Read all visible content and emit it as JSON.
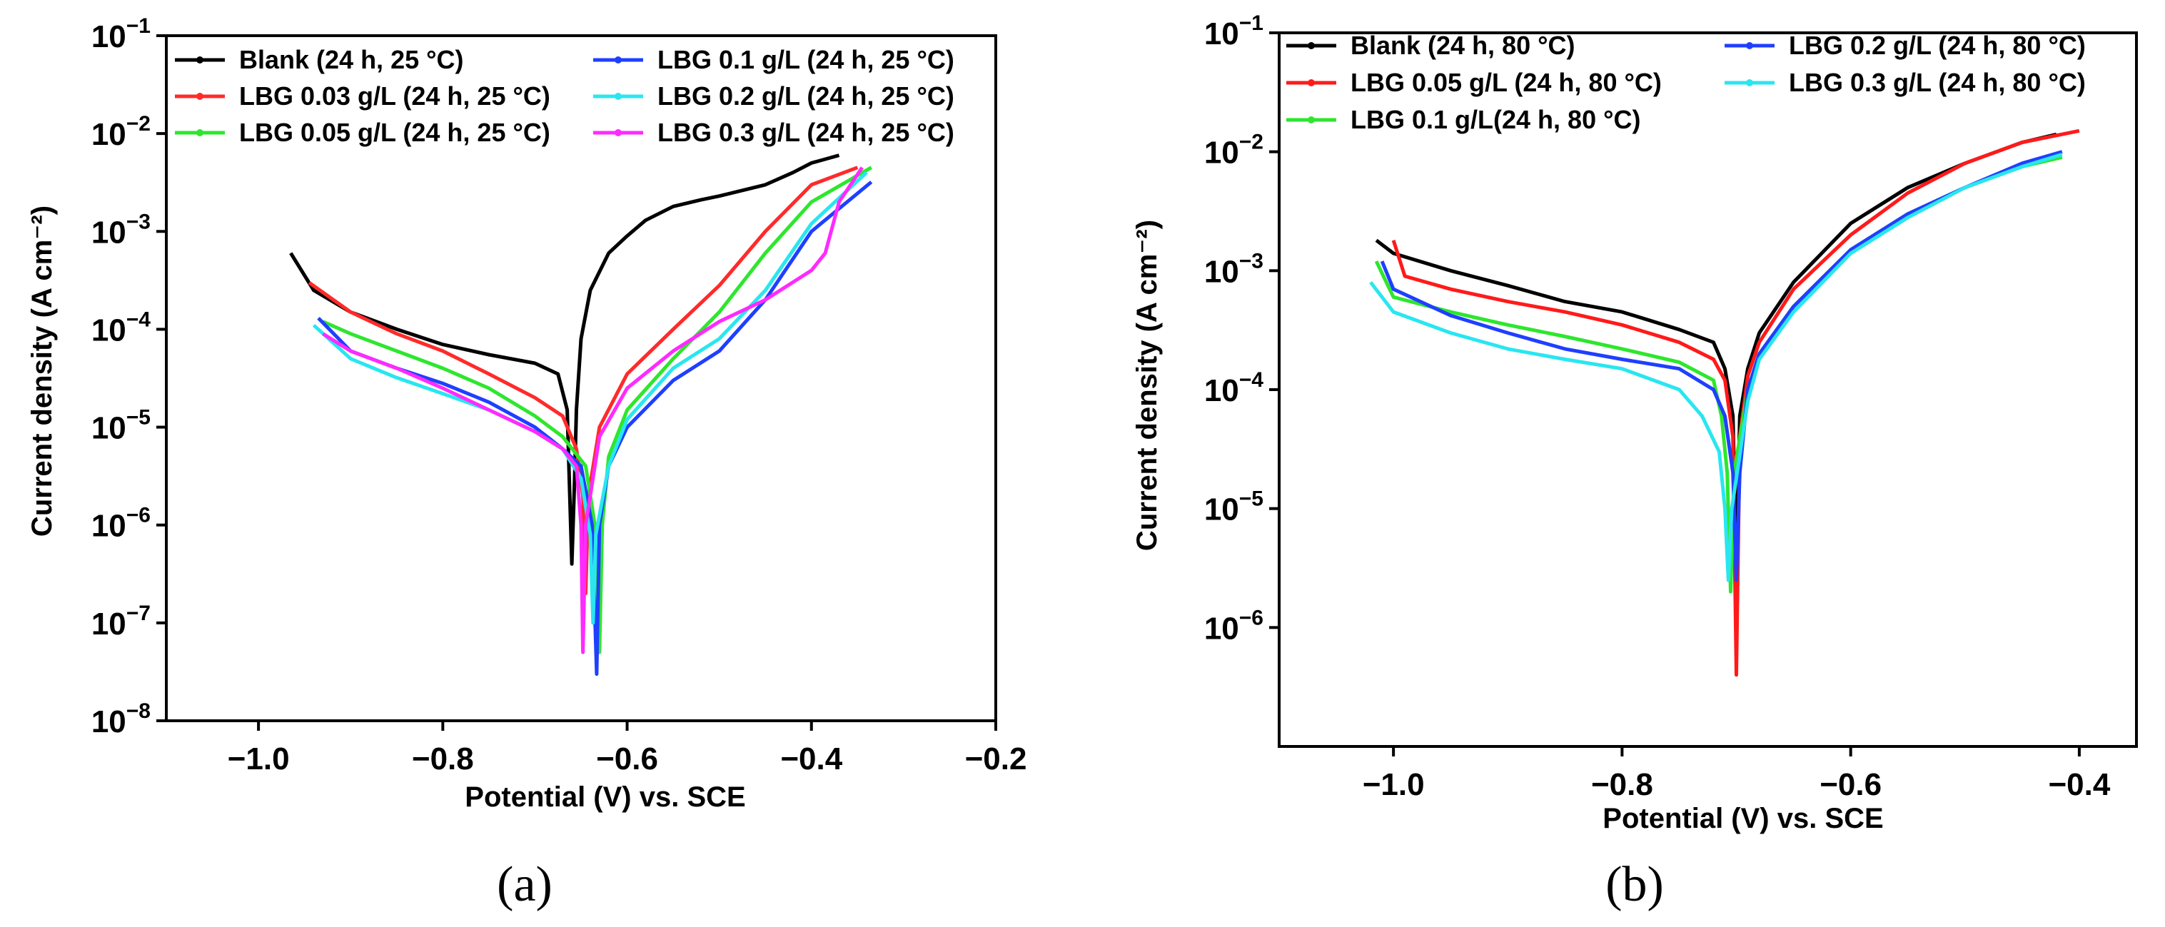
{
  "figure": {
    "panel_a_label": "(a)",
    "panel_b_label": "(b)"
  },
  "chart_data": [
    {
      "type": "line",
      "panel": "(a)",
      "xlabel": "Potential (V) vs. SCE",
      "ylabel": "Current density (A cm⁻²)",
      "yscale": "log",
      "xlim": [
        -1.1,
        -0.2
      ],
      "ylim": [
        1e-08,
        0.1
      ],
      "xticks": [
        -1.0,
        -0.8,
        -0.6,
        -0.4,
        -0.2
      ],
      "xtick_labels": [
        "−1.0",
        "−0.8",
        "−0.6",
        "−0.4",
        "−0.2"
      ],
      "yticks": [
        -8,
        -7,
        -6,
        -5,
        -4,
        -3,
        -2,
        -1
      ],
      "legend_position": "top",
      "series": [
        {
          "name": "Blank  (24 h, 25 °C)",
          "color": "#000000",
          "x": [
            -0.965,
            -0.94,
            -0.9,
            -0.85,
            -0.8,
            -0.75,
            -0.7,
            -0.675,
            -0.665,
            -0.66,
            -0.657,
            -0.655,
            -0.65,
            -0.64,
            -0.62,
            -0.6,
            -0.58,
            -0.55,
            -0.52,
            -0.5,
            -0.45,
            -0.42,
            -0.4,
            -0.37
          ],
          "y": [
            0.0006,
            0.00025,
            0.00015,
            0.0001,
            7e-05,
            5.5e-05,
            4.5e-05,
            3.5e-05,
            1.5e-05,
            4e-07,
            3e-06,
            1.5e-05,
            8e-05,
            0.00025,
            0.0006,
            0.0009,
            0.0013,
            0.0018,
            0.0021,
            0.0023,
            0.003,
            0.004,
            0.005,
            0.006
          ]
        },
        {
          "name": "LBG 0.03 g/L (24 h, 25 °C)",
          "color": "#ff2a2a",
          "x": [
            -0.945,
            -0.9,
            -0.85,
            -0.8,
            -0.75,
            -0.7,
            -0.67,
            -0.655,
            -0.648,
            -0.645,
            -0.642,
            -0.63,
            -0.6,
            -0.55,
            -0.5,
            -0.45,
            -0.4,
            -0.35
          ],
          "y": [
            0.0003,
            0.00015,
            9e-05,
            6e-05,
            3.5e-05,
            2e-05,
            1.3e-05,
            6e-06,
            2e-06,
            2e-07,
            2e-06,
            1e-05,
            3.5e-05,
            0.0001,
            0.00028,
            0.001,
            0.003,
            0.0045
          ]
        },
        {
          "name": "LBG 0.05 g/L (24 h, 25 °C)",
          "color": "#2ee62e",
          "x": [
            -0.93,
            -0.9,
            -0.85,
            -0.8,
            -0.75,
            -0.7,
            -0.67,
            -0.645,
            -0.635,
            -0.63,
            -0.627,
            -0.62,
            -0.6,
            -0.55,
            -0.5,
            -0.45,
            -0.4,
            -0.335
          ],
          "y": [
            0.00012,
            9e-05,
            6e-05,
            4e-05,
            2.5e-05,
            1.3e-05,
            8e-06,
            4e-06,
            1e-06,
            5e-08,
            1e-06,
            5e-06,
            1.5e-05,
            5e-05,
            0.00015,
            0.0006,
            0.002,
            0.0045
          ]
        },
        {
          "name": "LBG 0.1 g/L (24 h, 25 °C)",
          "color": "#1f3fff",
          "x": [
            -0.935,
            -0.9,
            -0.85,
            -0.8,
            -0.75,
            -0.7,
            -0.67,
            -0.65,
            -0.638,
            -0.633,
            -0.63,
            -0.62,
            -0.6,
            -0.55,
            -0.5,
            -0.45,
            -0.4,
            -0.335
          ],
          "y": [
            0.00013,
            6e-05,
            4e-05,
            2.8e-05,
            1.8e-05,
            1e-05,
            6e-06,
            4e-06,
            1e-06,
            3e-08,
            1e-06,
            4e-06,
            1e-05,
            3e-05,
            6e-05,
            0.0002,
            0.001,
            0.0032
          ]
        },
        {
          "name": "LBG 0.2 g/L (24 h, 25 °C)",
          "color": "#29e6f0",
          "x": [
            -0.94,
            -0.9,
            -0.85,
            -0.8,
            -0.75,
            -0.7,
            -0.67,
            -0.65,
            -0.64,
            -0.637,
            -0.634,
            -0.62,
            -0.6,
            -0.55,
            -0.5,
            -0.45,
            -0.4,
            -0.34
          ],
          "y": [
            0.00011,
            5e-05,
            3.2e-05,
            2.2e-05,
            1.5e-05,
            9e-06,
            6e-06,
            3e-06,
            8e-07,
            1e-07,
            8e-07,
            4e-06,
            1.2e-05,
            4e-05,
            8e-05,
            0.00025,
            0.0012,
            0.004
          ]
        },
        {
          "name": "LBG 0.3 g/L (24 h, 25 °C)",
          "color": "#ff2aff",
          "x": [
            -0.93,
            -0.9,
            -0.85,
            -0.8,
            -0.75,
            -0.7,
            -0.67,
            -0.655,
            -0.65,
            -0.648,
            -0.645,
            -0.63,
            -0.6,
            -0.55,
            -0.5,
            -0.45,
            -0.4,
            -0.385,
            -0.37,
            -0.345
          ],
          "y": [
            9e-05,
            6e-05,
            4e-05,
            2.5e-05,
            1.5e-05,
            9e-06,
            6e-06,
            4e-06,
            1e-06,
            5e-08,
            1e-06,
            8e-06,
            2.5e-05,
            6e-05,
            0.00012,
            0.0002,
            0.0004,
            0.0006,
            0.002,
            0.0045
          ]
        }
      ],
      "legend": [
        "Blank  (24 h, 25 °C)",
        "LBG 0.03 g/L (24 h, 25 °C)",
        "LBG 0.05 g/L (24 h, 25 °C)",
        "LBG 0.1 g/L (24 h, 25 °C)",
        "LBG 0.2 g/L (24 h, 25 °C)",
        "LBG 0.3 g/L (24 h, 25 °C)"
      ]
    },
    {
      "type": "line",
      "panel": "(b)",
      "xlabel": "Potential (V) vs. SCE",
      "ylabel": "Current density (A cm⁻²)",
      "yscale": "log",
      "xlim": [
        -1.1,
        -0.35
      ],
      "ylim": [
        1e-07,
        0.1
      ],
      "xticks": [
        -1.0,
        -0.8,
        -0.6,
        -0.4
      ],
      "xtick_labels": [
        "−1.0",
        "−0.8",
        "−0.6",
        "−0.4"
      ],
      "yticks": [
        -6,
        -5,
        -4,
        -3,
        -2,
        -1
      ],
      "legend_position": "top",
      "series": [
        {
          "name": "Blank (24 h, 80 °C)",
          "color": "#000000",
          "x": [
            -1.015,
            -1.0,
            -0.95,
            -0.9,
            -0.85,
            -0.8,
            -0.75,
            -0.72,
            -0.71,
            -0.703,
            -0.7,
            -0.697,
            -0.69,
            -0.68,
            -0.65,
            -0.6,
            -0.55,
            -0.5,
            -0.45,
            -0.42
          ],
          "y": [
            0.0018,
            0.0014,
            0.001,
            0.00075,
            0.00055,
            0.00045,
            0.00032,
            0.00025,
            0.00015,
            6e-05,
            3e-06,
            6e-05,
            0.00015,
            0.0003,
            0.0008,
            0.0025,
            0.005,
            0.008,
            0.012,
            0.014
          ]
        },
        {
          "name": "LBG 0.05 g/L (24 h, 80 °C)",
          "color": "#ff1a1a",
          "x": [
            -1.0,
            -0.99,
            -0.95,
            -0.9,
            -0.85,
            -0.8,
            -0.75,
            -0.72,
            -0.71,
            -0.703,
            -0.7,
            -0.697,
            -0.69,
            -0.68,
            -0.65,
            -0.6,
            -0.55,
            -0.5,
            -0.45,
            -0.4
          ],
          "y": [
            0.0018,
            0.0009,
            0.0007,
            0.00055,
            0.00045,
            0.00035,
            0.00025,
            0.00018,
            0.00012,
            4e-05,
            4e-07,
            4e-05,
            0.00013,
            0.00025,
            0.0007,
            0.002,
            0.0045,
            0.008,
            0.012,
            0.015
          ]
        },
        {
          "name": "LBG 0.1 g/L(24 h, 80 °C)",
          "color": "#2ee62e",
          "x": [
            -1.015,
            -1.0,
            -0.95,
            -0.9,
            -0.85,
            -0.8,
            -0.75,
            -0.72,
            -0.713,
            -0.708,
            -0.705,
            -0.702,
            -0.69,
            -0.68,
            -0.65,
            -0.6,
            -0.55,
            -0.5,
            -0.45,
            -0.415
          ],
          "y": [
            0.0012,
            0.0006,
            0.00045,
            0.00035,
            0.00028,
            0.00022,
            0.00017,
            0.00012,
            6e-05,
            2e-05,
            2e-06,
            2e-05,
            0.0001,
            0.0002,
            0.0005,
            0.0015,
            0.003,
            0.005,
            0.0075,
            0.009
          ]
        },
        {
          "name": "LBG 0.2 g/L (24 h, 80 °C)",
          "color": "#1f3fff",
          "x": [
            -1.01,
            -1.0,
            -0.95,
            -0.9,
            -0.85,
            -0.8,
            -0.75,
            -0.72,
            -0.71,
            -0.703,
            -0.7,
            -0.697,
            -0.69,
            -0.68,
            -0.65,
            -0.6,
            -0.55,
            -0.5,
            -0.45,
            -0.415
          ],
          "y": [
            0.0012,
            0.0007,
            0.00042,
            0.0003,
            0.00022,
            0.00018,
            0.00015,
            0.0001,
            6e-05,
            2e-05,
            2.5e-06,
            2e-05,
            0.0001,
            0.0002,
            0.0005,
            0.0015,
            0.003,
            0.005,
            0.008,
            0.01
          ]
        },
        {
          "name": "LBG 0.3 g/L (24 h, 80 °C)",
          "color": "#29e6f0",
          "x": [
            -1.02,
            -1.0,
            -0.95,
            -0.9,
            -0.85,
            -0.8,
            -0.75,
            -0.73,
            -0.715,
            -0.71,
            -0.707,
            -0.704,
            -0.69,
            -0.68,
            -0.65,
            -0.6,
            -0.55,
            -0.5,
            -0.45,
            -0.415
          ],
          "y": [
            0.0008,
            0.00045,
            0.0003,
            0.00022,
            0.00018,
            0.00015,
            0.0001,
            6e-05,
            3e-05,
            1e-05,
            2.5e-06,
            1e-05,
            8e-05,
            0.00018,
            0.00045,
            0.0014,
            0.0028,
            0.005,
            0.0075,
            0.0095
          ]
        }
      ],
      "legend": [
        "Blank (24 h, 80 °C)",
        "LBG 0.05 g/L (24 h, 80 °C)",
        "LBG 0.1 g/L(24 h, 80 °C)",
        "LBG 0.2 g/L (24 h, 80 °C)",
        "LBG 0.3 g/L (24 h, 80 °C)"
      ]
    }
  ]
}
